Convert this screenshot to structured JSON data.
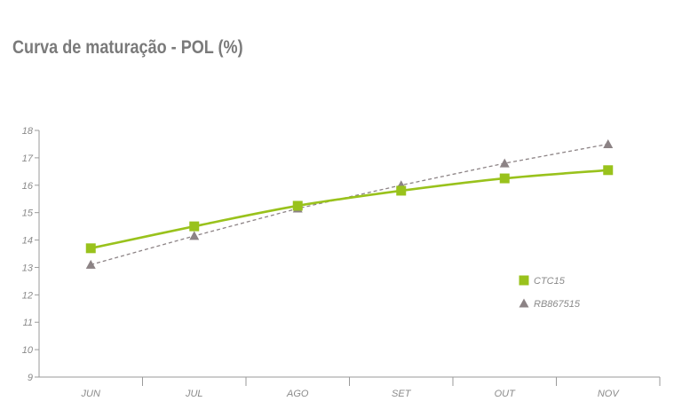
{
  "chart_data": {
    "type": "line",
    "title": "Curva de maturação - POL (%)",
    "categories": [
      "JUN",
      "JUL",
      "AGO",
      "SET",
      "OUT",
      "NOV"
    ],
    "ylim": [
      9,
      18
    ],
    "yticks": [
      9,
      10,
      11,
      12,
      13,
      14,
      15,
      16,
      17,
      18
    ],
    "grid": false,
    "legend_position": "right",
    "series": [
      {
        "name": "CTC15",
        "values": [
          13.7,
          14.5,
          15.25,
          15.8,
          16.25,
          16.55
        ],
        "color": "#99c21c",
        "marker": "square",
        "line": "solid-smooth"
      },
      {
        "name": "RB867515",
        "values": [
          13.1,
          14.15,
          15.15,
          16.0,
          16.8,
          17.5
        ],
        "color": "#8c8385",
        "marker": "triangle",
        "line": "dashed"
      }
    ]
  }
}
